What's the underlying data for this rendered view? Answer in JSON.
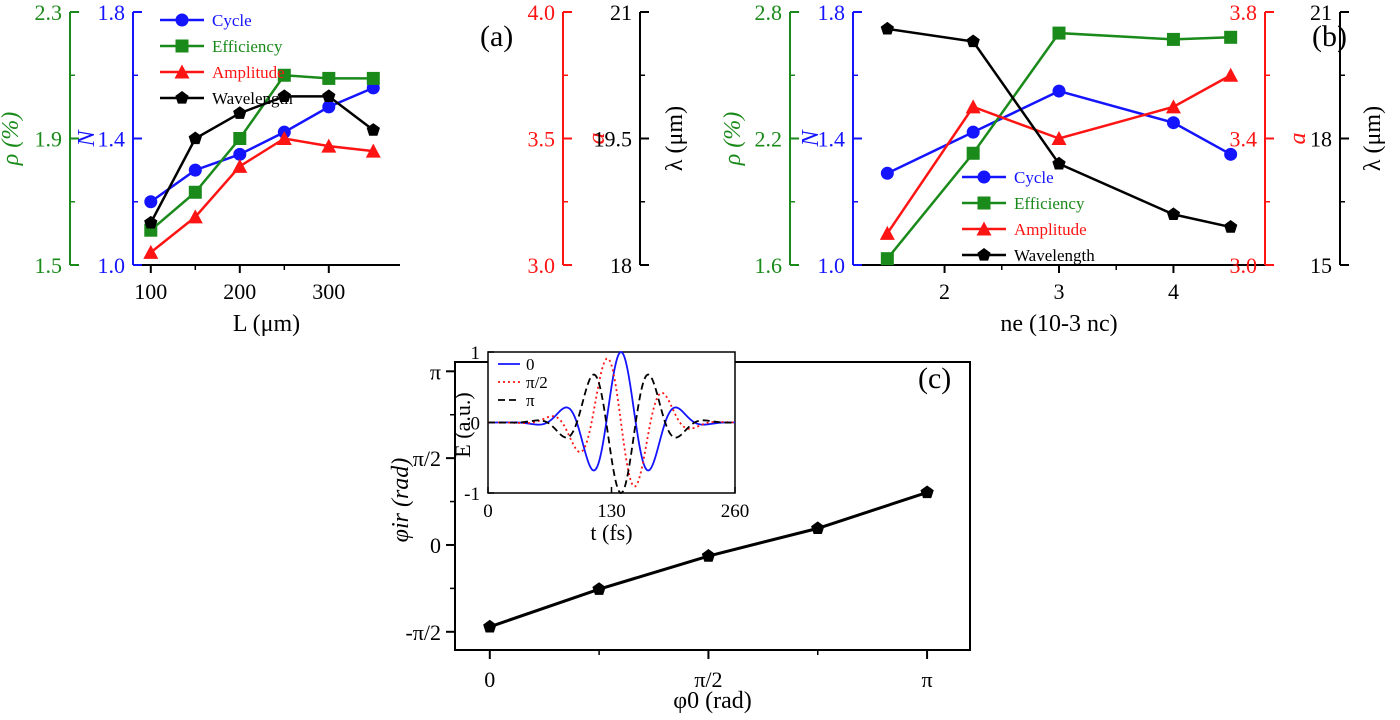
{
  "chart_data": [
    {
      "panel": "(a)",
      "type": "line",
      "x": [
        100,
        150,
        200,
        250,
        300,
        350
      ],
      "xlabel": "L (μm)",
      "xlim": [
        80,
        380
      ],
      "xticks": [
        "100",
        "200",
        "300"
      ],
      "axes": [
        {
          "label": "ρ (%)",
          "color": "#1a8a1a",
          "ylim": [
            1.5,
            2.3
          ],
          "ticks": [
            "1.5",
            "1.9",
            "2.3"
          ]
        },
        {
          "label": "N",
          "color": "#1414ff",
          "ylim": [
            1.0,
            1.8
          ],
          "ticks": [
            "1.0",
            "1.4",
            "1.8"
          ]
        },
        {
          "label": "a",
          "color": "#ff1414",
          "ylim": [
            3.0,
            4.0
          ],
          "ticks": [
            "3.0",
            "3.5",
            "4.0"
          ]
        },
        {
          "label": "λ (μm)",
          "color": "#000000",
          "ylim": [
            18,
            21
          ],
          "ticks": [
            "18",
            "19.5",
            "21"
          ]
        }
      ],
      "series": [
        {
          "name": "Cycle",
          "color": "#1414ff",
          "marker": "circle",
          "axis": 1,
          "values": [
            1.2,
            1.3,
            1.35,
            1.42,
            1.5,
            1.56
          ]
        },
        {
          "name": "Efficiency",
          "color": "#1a8a1a",
          "marker": "square",
          "axis": 0,
          "values": [
            1.61,
            1.73,
            1.9,
            2.1,
            2.09,
            2.09
          ]
        },
        {
          "name": "Amplitude",
          "color": "#ff1414",
          "marker": "triangle",
          "axis": 2,
          "values": [
            3.05,
            3.19,
            3.39,
            3.5,
            3.47,
            3.45
          ]
        },
        {
          "name": "Wavelength",
          "color": "#000000",
          "marker": "pentagon",
          "axis": 3,
          "values": [
            18.5,
            19.5,
            19.8,
            20.0,
            20.0,
            19.6
          ]
        }
      ],
      "legend_position": "top-left"
    },
    {
      "panel": "(b)",
      "type": "line",
      "x": [
        1.5,
        2.25,
        3,
        4,
        4.5
      ],
      "xlabel": "ne (10-3 nc)",
      "xlim": [
        1.2,
        4.8
      ],
      "xticks": [
        "2",
        "3",
        "4"
      ],
      "axes": [
        {
          "label": "ρ (%)",
          "color": "#1a8a1a",
          "ylim": [
            1.6,
            2.8
          ],
          "ticks": [
            "1.6",
            "2.2",
            "2.8"
          ]
        },
        {
          "label": "N",
          "color": "#1414ff",
          "ylim": [
            1.0,
            1.8
          ],
          "ticks": [
            "1.0",
            "1.4",
            "1.8"
          ]
        },
        {
          "label": "a",
          "color": "#ff1414",
          "ylim": [
            3.0,
            3.8
          ],
          "ticks": [
            "3.0",
            "3.4",
            "3.8"
          ]
        },
        {
          "label": "λ (μm)",
          "color": "#000000",
          "ylim": [
            15,
            21
          ],
          "ticks": [
            "15",
            "18",
            "21"
          ]
        }
      ],
      "series": [
        {
          "name": "Cycle",
          "color": "#1414ff",
          "marker": "circle",
          "axis": 1,
          "values": [
            1.29,
            1.42,
            1.55,
            1.45,
            1.35
          ]
        },
        {
          "name": "Efficiency",
          "color": "#1a8a1a",
          "marker": "square",
          "axis": 0,
          "values": [
            1.63,
            2.13,
            2.7,
            2.67,
            2.68
          ]
        },
        {
          "name": "Amplitude",
          "color": "#ff1414",
          "marker": "triangle",
          "axis": 2,
          "values": [
            3.1,
            3.5,
            3.4,
            3.5,
            3.6
          ]
        },
        {
          "name": "Wavelength",
          "color": "#000000",
          "marker": "pentagon",
          "axis": 3,
          "values": [
            20.6,
            20.3,
            17.4,
            16.2,
            15.9
          ]
        }
      ],
      "legend_position": "center"
    },
    {
      "panel": "(c)",
      "type": "line",
      "xlabel": "φ0 (rad)",
      "ylabel": "φir (rad)",
      "x": [
        0,
        0.785,
        1.571,
        2.356,
        3.142
      ],
      "xticks": [
        "0",
        "π/2",
        "π"
      ],
      "yticks": [
        "-π/2",
        "0",
        "π/2",
        "π"
      ],
      "xlim": [
        -0.25,
        3.45
      ],
      "ylim": [
        -1.9,
        3.31
      ],
      "series": [
        {
          "color": "#000000",
          "marker": "pentagon",
          "values": [
            -1.48,
            -0.8,
            -0.2,
            0.3,
            0.95
          ]
        }
      ],
      "inset": {
        "type": "line",
        "xlabel": "t (fs)",
        "ylabel": "E (a.u.)",
        "xlim": [
          0,
          260
        ],
        "ylim": [
          -1,
          1
        ],
        "xticks": [
          "0",
          "130",
          "260"
        ],
        "yticks": [
          "1",
          "0",
          "-1"
        ],
        "series": [
          {
            "name": "0",
            "color": "#1414ff",
            "style": "solid",
            "phase": 0
          },
          {
            "name": "π/2",
            "color": "#ff1414",
            "style": "dotted",
            "phase": 1.5708
          },
          {
            "name": "π",
            "color": "#000000",
            "style": "dashed",
            "phase": 3.1416
          }
        ]
      }
    }
  ]
}
